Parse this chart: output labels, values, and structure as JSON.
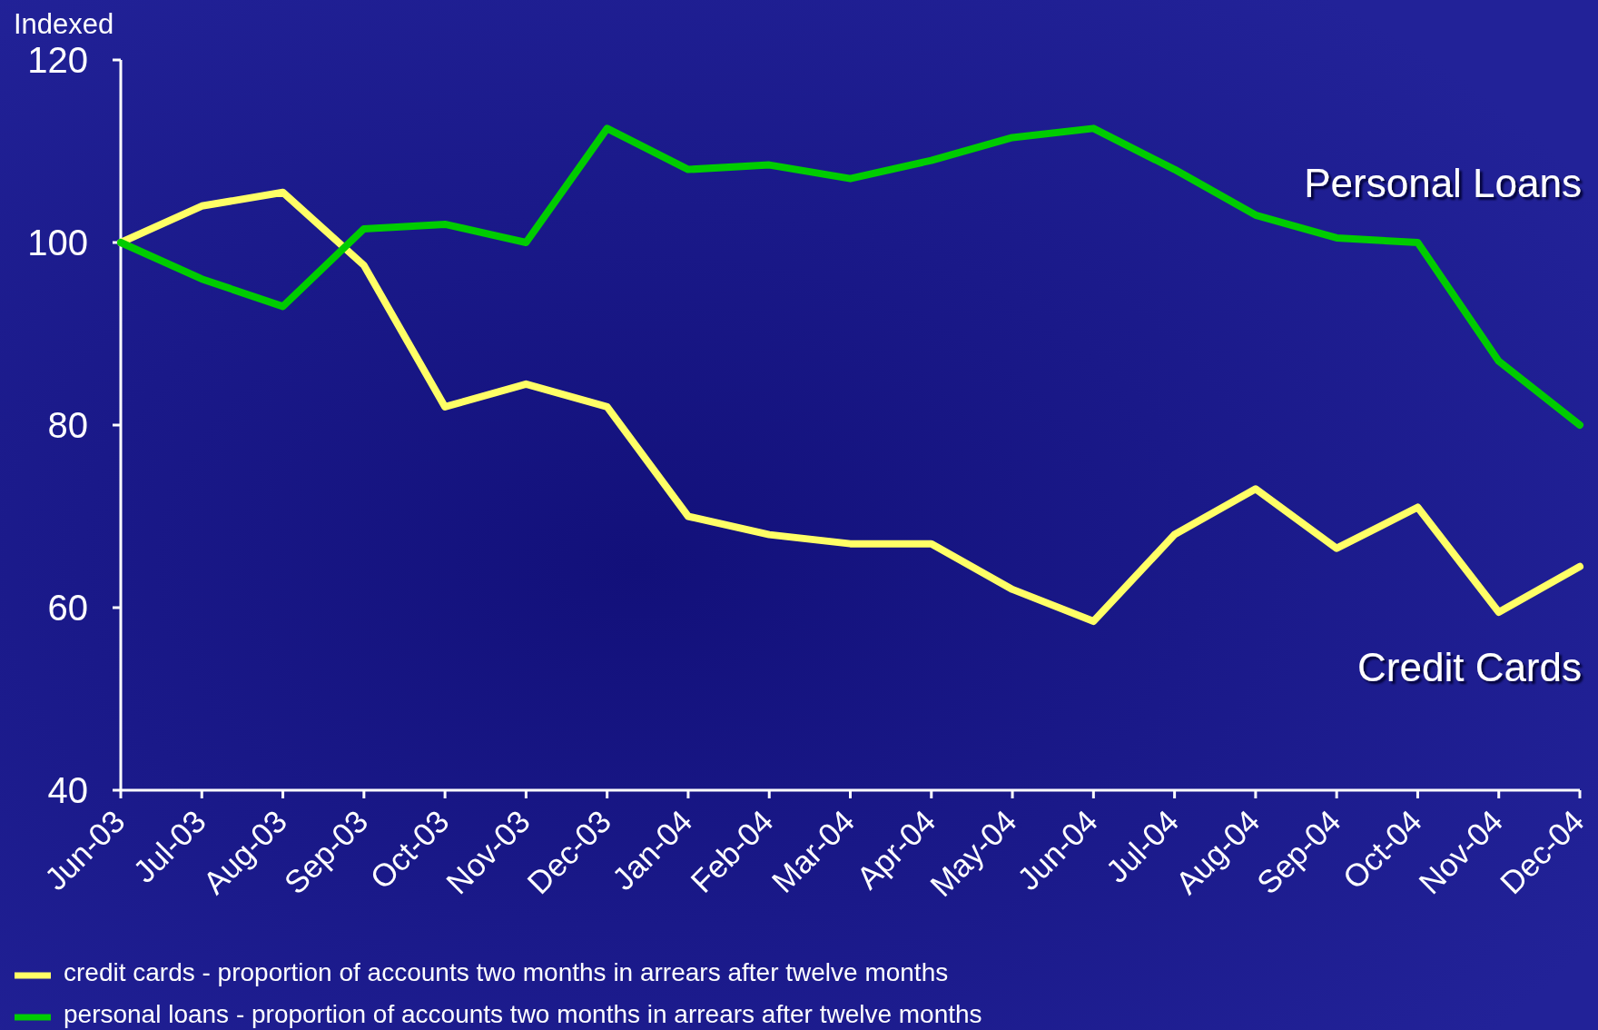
{
  "chart_data": {
    "type": "line",
    "ylabel": "Indexed",
    "categories": [
      "Jun-03",
      "Jul-03",
      "Aug-03",
      "Sep-03",
      "Oct-03",
      "Nov-03",
      "Dec-03",
      "Jan-04",
      "Feb-04",
      "Mar-04",
      "Apr-04",
      "May-04",
      "Jun-04",
      "Jul-04",
      "Aug-04",
      "Sep-04",
      "Oct-04",
      "Nov-04",
      "Dec-04"
    ],
    "series": [
      {
        "name": "credit cards - proportion of accounts two months in arrears after twelve months",
        "color": "#ffff66",
        "values": [
          100,
          104,
          105.5,
          97.5,
          82,
          84.5,
          82,
          70,
          68,
          67,
          67,
          62,
          58.5,
          68,
          73,
          66.5,
          71,
          59.5,
          64.5
        ]
      },
      {
        "name": "personal loans - proportion of accounts two months in arrears after twelve months",
        "color": "#00cc00",
        "values": [
          100,
          96,
          93,
          101.5,
          102,
          100,
          112.5,
          108,
          108.5,
          107,
          109,
          111.5,
          112.5,
          108,
          103,
          100.5,
          100,
          87,
          80
        ]
      }
    ],
    "ylim": [
      40,
      120
    ],
    "yticks": [
      40,
      60,
      80,
      100,
      120
    ],
    "annotations": [
      "Personal Loans",
      "Credit Cards"
    ],
    "legend": "bottom left"
  }
}
